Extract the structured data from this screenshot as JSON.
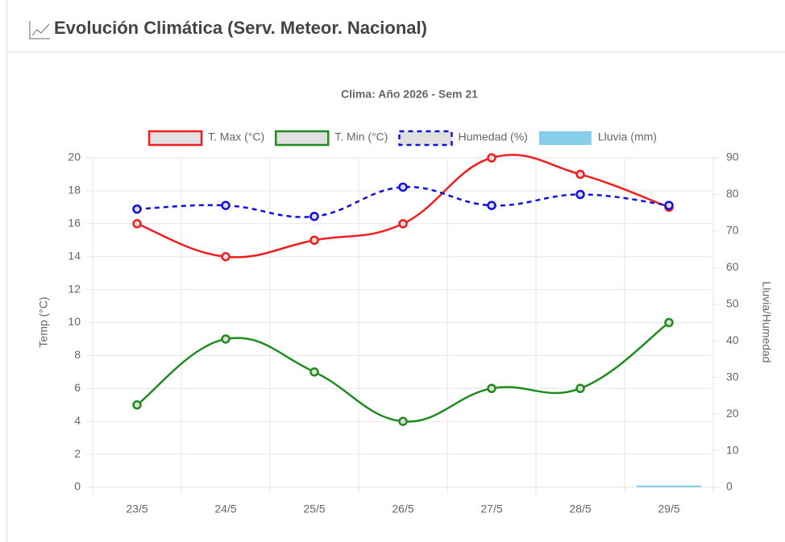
{
  "panel_title": "Evolución Climática (Serv. Meteor. Nacional)",
  "chart_data": {
    "type": "line",
    "title": "Clima: Año 2026 - Sem 21",
    "categories": [
      "23/5",
      "24/5",
      "25/5",
      "26/5",
      "27/5",
      "28/5",
      "29/5"
    ],
    "series": [
      {
        "name": "T. Max (°C)",
        "color": "#f01e1e",
        "values": [
          16,
          14,
          15,
          16,
          20,
          19,
          17
        ]
      },
      {
        "name": "T. Min (°C)",
        "color": "#1e8c1e",
        "values": [
          5,
          9,
          7,
          4,
          6,
          6,
          10
        ]
      },
      {
        "name": "Humedad (%)",
        "color": "#1010e0",
        "dashed": true,
        "axis": "y2",
        "values": [
          76,
          77,
          74,
          82,
          77,
          80,
          77
        ]
      },
      {
        "name": "Lluvia (mm)",
        "color": "#87ceeb",
        "type": "bar",
        "axis": "y2",
        "values": [
          0,
          0,
          0,
          0,
          0,
          0,
          0.5
        ]
      }
    ],
    "ylabel": "Temp (°C)",
    "y2label": "Lluvia/Humedad",
    "ylim": [
      0,
      20
    ],
    "yticks": [
      0,
      2,
      4,
      6,
      8,
      10,
      12,
      14,
      16,
      18,
      20
    ],
    "y2lim": [
      0,
      90
    ],
    "y2ticks": [
      0,
      10,
      20,
      30,
      40,
      50,
      60,
      70,
      80,
      90
    ],
    "grid": true,
    "legend": "top"
  }
}
